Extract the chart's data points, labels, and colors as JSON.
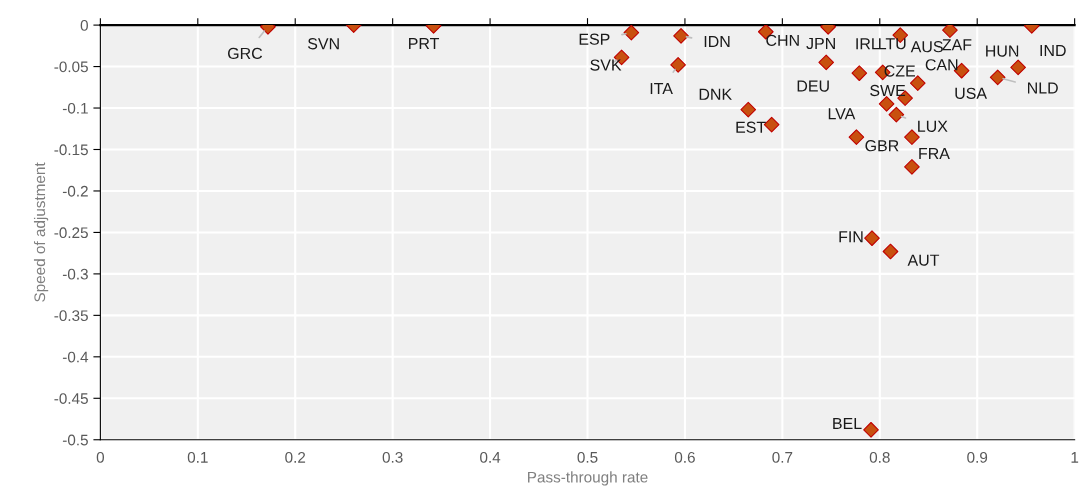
{
  "chart_data": {
    "type": "scatter",
    "xlabel": "Pass-through rate",
    "ylabel": "Speed of adjustment",
    "x": [
      0.172,
      0.26,
      0.342,
      0.545,
      0.535,
      0.596,
      0.593,
      0.683,
      0.665,
      0.689,
      0.747,
      0.821,
      0.779,
      0.872,
      0.956,
      0.745,
      0.803,
      0.839,
      0.884,
      0.942,
      0.921,
      0.826,
      0.807,
      0.817,
      0.776,
      0.833,
      0.833,
      0.792,
      0.811,
      0.791
    ],
    "series": [
      {
        "color": "#c8500f",
        "values": [
          -0.002,
          0,
          -0.001,
          -0.009,
          -0.039,
          -0.013,
          -0.048,
          -0.008,
          -0.102,
          -0.12,
          -0.002,
          -0.012,
          -0.058,
          -0.006,
          -0.001,
          -0.045,
          -0.057,
          -0.07,
          -0.055,
          -0.051,
          -0.063,
          -0.088,
          -0.095,
          -0.108,
          -0.135,
          -0.135,
          -0.171,
          -0.257,
          -0.273,
          -0.488
        ]
      }
    ],
    "annotations": [
      {
        "text": "GRC",
        "x": 0.172,
        "y": -0.002
      },
      {
        "text": "SVN",
        "x": 0.26,
        "y": 0
      },
      {
        "text": "PRT",
        "x": 0.342,
        "y": -0.001
      },
      {
        "text": "ESP",
        "x": 0.545,
        "y": -0.009
      },
      {
        "text": "SVK",
        "x": 0.535,
        "y": -0.039
      },
      {
        "text": "IDN",
        "x": 0.596,
        "y": -0.013
      },
      {
        "text": "ITA",
        "x": 0.593,
        "y": -0.048
      },
      {
        "text": "CHN",
        "x": 0.683,
        "y": -0.008
      },
      {
        "text": "DNK",
        "x": 0.665,
        "y": -0.102
      },
      {
        "text": "EST",
        "x": 0.689,
        "y": -0.12
      },
      {
        "text": "JPN",
        "x": 0.747,
        "y": -0.002
      },
      {
        "text": "LTU",
        "x": 0.821,
        "y": -0.012
      },
      {
        "text": "IRL",
        "x": 0.779,
        "y": -0.058
      },
      {
        "text": "ZAF",
        "x": 0.872,
        "y": -0.006
      },
      {
        "text": "IND",
        "x": 0.956,
        "y": -0.001
      },
      {
        "text": "DEU",
        "x": 0.745,
        "y": -0.045
      },
      {
        "text": "CZE",
        "x": 0.803,
        "y": -0.057
      },
      {
        "text": "CAN",
        "x": 0.839,
        "y": -0.07
      },
      {
        "text": "USA",
        "x": 0.884,
        "y": -0.055
      },
      {
        "text": "HUN",
        "x": 0.942,
        "y": -0.051
      },
      {
        "text": "NLD",
        "x": 0.921,
        "y": -0.063
      },
      {
        "text": "AUS",
        "x": 0.826,
        "y": -0.088
      },
      {
        "text": "SWE",
        "x": 0.807,
        "y": -0.095
      },
      {
        "text": "LUX",
        "x": 0.817,
        "y": -0.108
      },
      {
        "text": "LVA",
        "x": 0.776,
        "y": -0.135
      },
      {
        "text": "GBR",
        "x": 0.833,
        "y": -0.135
      },
      {
        "text": "FRA",
        "x": 0.833,
        "y": -0.171
      },
      {
        "text": "FIN",
        "x": 0.792,
        "y": -0.257
      },
      {
        "text": "AUT",
        "x": 0.811,
        "y": -0.273
      },
      {
        "text": "BEL",
        "x": 0.791,
        "y": -0.488
      }
    ],
    "xlim": [
      0,
      1
    ],
    "ylim": [
      -0.5,
      0
    ],
    "xticks": [
      0,
      0.1,
      0.2,
      0.3,
      0.4,
      0.5,
      0.6,
      0.7,
      0.8,
      0.9,
      1
    ],
    "yticks": [
      0,
      -0.05,
      -0.1,
      -0.15,
      -0.2,
      -0.25,
      -0.3,
      -0.35,
      -0.4,
      -0.45,
      -0.5
    ],
    "grid": true,
    "marker": "diamond",
    "legend": false
  }
}
